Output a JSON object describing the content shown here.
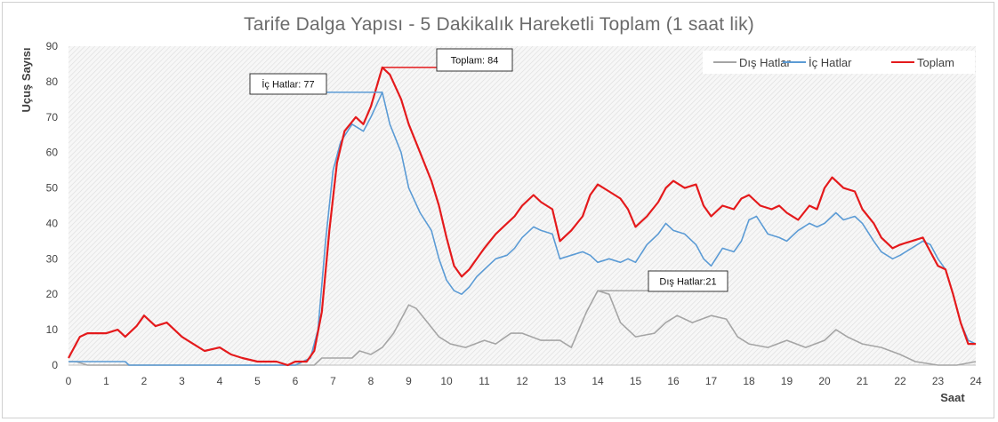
{
  "chart_data": {
    "type": "line",
    "title": "Tarife Dalga Yapısı - 5 Dakikalık Hareketli Toplam (1 saat lik)",
    "xlabel": "Saat",
    "ylabel": "Uçuş Sayısı",
    "xlim": [
      0,
      24
    ],
    "ylim": [
      0,
      90
    ],
    "xticks": [
      0,
      1,
      2,
      3,
      4,
      5,
      6,
      7,
      8,
      9,
      10,
      11,
      12,
      13,
      14,
      15,
      16,
      17,
      18,
      19,
      20,
      21,
      22,
      23,
      24
    ],
    "yticks": [
      0,
      10,
      20,
      30,
      40,
      50,
      60,
      70,
      80,
      90
    ],
    "grid": "hatched-plot-area",
    "legend_position": "top-right",
    "series": [
      {
        "name": "Dış Hatlar",
        "color": "#a5a5a5",
        "points": [
          [
            0,
            1
          ],
          [
            0.2,
            1
          ],
          [
            0.5,
            0
          ],
          [
            1,
            0
          ],
          [
            2,
            0
          ],
          [
            3,
            0
          ],
          [
            4,
            0
          ],
          [
            5,
            0
          ],
          [
            6,
            0
          ],
          [
            6.5,
            0
          ],
          [
            6.7,
            2
          ],
          [
            7,
            2
          ],
          [
            7.5,
            2
          ],
          [
            7.7,
            4
          ],
          [
            8,
            3
          ],
          [
            8.3,
            5
          ],
          [
            8.6,
            9
          ],
          [
            8.8,
            13
          ],
          [
            9,
            17
          ],
          [
            9.2,
            16
          ],
          [
            9.5,
            12
          ],
          [
            9.8,
            8
          ],
          [
            10.1,
            6
          ],
          [
            10.5,
            5
          ],
          [
            11,
            7
          ],
          [
            11.3,
            6
          ],
          [
            11.7,
            9
          ],
          [
            12,
            9
          ],
          [
            12.5,
            7
          ],
          [
            13,
            7
          ],
          [
            13.3,
            5
          ],
          [
            13.7,
            15
          ],
          [
            14,
            21
          ],
          [
            14.3,
            20
          ],
          [
            14.6,
            12
          ],
          [
            15,
            8
          ],
          [
            15.5,
            9
          ],
          [
            15.8,
            12
          ],
          [
            16.1,
            14
          ],
          [
            16.5,
            12
          ],
          [
            17,
            14
          ],
          [
            17.4,
            13
          ],
          [
            17.7,
            8
          ],
          [
            18,
            6
          ],
          [
            18.5,
            5
          ],
          [
            19,
            7
          ],
          [
            19.5,
            5
          ],
          [
            20,
            7
          ],
          [
            20.3,
            10
          ],
          [
            20.6,
            8
          ],
          [
            21,
            6
          ],
          [
            21.5,
            5
          ],
          [
            22,
            3
          ],
          [
            22.4,
            1
          ],
          [
            23,
            0
          ],
          [
            23.5,
            0
          ],
          [
            24,
            1
          ]
        ]
      },
      {
        "name": "İç Hatlar",
        "color": "#5b9bd5",
        "points": [
          [
            0,
            1
          ],
          [
            0.3,
            1
          ],
          [
            1,
            1
          ],
          [
            1.5,
            1
          ],
          [
            1.6,
            0
          ],
          [
            2,
            0
          ],
          [
            3,
            0
          ],
          [
            4,
            0
          ],
          [
            5,
            0
          ],
          [
            6,
            0
          ],
          [
            6.4,
            2
          ],
          [
            6.6,
            10
          ],
          [
            6.8,
            35
          ],
          [
            7,
            55
          ],
          [
            7.2,
            63
          ],
          [
            7.5,
            68
          ],
          [
            7.8,
            66
          ],
          [
            8,
            70
          ],
          [
            8.3,
            77
          ],
          [
            8.5,
            68
          ],
          [
            8.8,
            60
          ],
          [
            9,
            50
          ],
          [
            9.3,
            43
          ],
          [
            9.6,
            38
          ],
          [
            9.8,
            30
          ],
          [
            10,
            24
          ],
          [
            10.2,
            21
          ],
          [
            10.4,
            20
          ],
          [
            10.6,
            22
          ],
          [
            10.8,
            25
          ],
          [
            11,
            27
          ],
          [
            11.3,
            30
          ],
          [
            11.6,
            31
          ],
          [
            11.8,
            33
          ],
          [
            12,
            36
          ],
          [
            12.3,
            39
          ],
          [
            12.5,
            38
          ],
          [
            12.8,
            37
          ],
          [
            13,
            30
          ],
          [
            13.3,
            31
          ],
          [
            13.6,
            32
          ],
          [
            13.8,
            31
          ],
          [
            14,
            29
          ],
          [
            14.3,
            30
          ],
          [
            14.6,
            29
          ],
          [
            14.8,
            30
          ],
          [
            15,
            29
          ],
          [
            15.3,
            34
          ],
          [
            15.6,
            37
          ],
          [
            15.8,
            40
          ],
          [
            16,
            38
          ],
          [
            16.3,
            37
          ],
          [
            16.6,
            34
          ],
          [
            16.8,
            30
          ],
          [
            17,
            28
          ],
          [
            17.3,
            33
          ],
          [
            17.6,
            32
          ],
          [
            17.8,
            35
          ],
          [
            18,
            41
          ],
          [
            18.2,
            42
          ],
          [
            18.5,
            37
          ],
          [
            18.8,
            36
          ],
          [
            19,
            35
          ],
          [
            19.3,
            38
          ],
          [
            19.6,
            40
          ],
          [
            19.8,
            39
          ],
          [
            20,
            40
          ],
          [
            20.3,
            43
          ],
          [
            20.5,
            41
          ],
          [
            20.8,
            42
          ],
          [
            21,
            40
          ],
          [
            21.3,
            35
          ],
          [
            21.5,
            32
          ],
          [
            21.8,
            30
          ],
          [
            22,
            31
          ],
          [
            22.3,
            33
          ],
          [
            22.6,
            35
          ],
          [
            22.8,
            34
          ],
          [
            23,
            30
          ],
          [
            23.2,
            27
          ],
          [
            23.4,
            20
          ],
          [
            23.6,
            12
          ],
          [
            23.8,
            7
          ],
          [
            24,
            6
          ]
        ]
      },
      {
        "name": "Toplam",
        "color": "#e41a1c",
        "points": [
          [
            0,
            2
          ],
          [
            0.3,
            8
          ],
          [
            0.5,
            9
          ],
          [
            1,
            9
          ],
          [
            1.3,
            10
          ],
          [
            1.5,
            8
          ],
          [
            1.8,
            11
          ],
          [
            2,
            14
          ],
          [
            2.3,
            11
          ],
          [
            2.6,
            12
          ],
          [
            2.8,
            10
          ],
          [
            3,
            8
          ],
          [
            3.3,
            6
          ],
          [
            3.6,
            4
          ],
          [
            4,
            5
          ],
          [
            4.3,
            3
          ],
          [
            4.6,
            2
          ],
          [
            5,
            1
          ],
          [
            5.5,
            1
          ],
          [
            5.8,
            0
          ],
          [
            6,
            1
          ],
          [
            6.3,
            1
          ],
          [
            6.5,
            4
          ],
          [
            6.7,
            15
          ],
          [
            6.9,
            38
          ],
          [
            7.1,
            57
          ],
          [
            7.3,
            66
          ],
          [
            7.6,
            70
          ],
          [
            7.8,
            68
          ],
          [
            8,
            73
          ],
          [
            8.3,
            84
          ],
          [
            8.5,
            82
          ],
          [
            8.8,
            75
          ],
          [
            9,
            68
          ],
          [
            9.3,
            60
          ],
          [
            9.6,
            52
          ],
          [
            9.8,
            45
          ],
          [
            10,
            36
          ],
          [
            10.2,
            28
          ],
          [
            10.4,
            25
          ],
          [
            10.6,
            27
          ],
          [
            10.8,
            30
          ],
          [
            11,
            33
          ],
          [
            11.3,
            37
          ],
          [
            11.6,
            40
          ],
          [
            11.8,
            42
          ],
          [
            12,
            45
          ],
          [
            12.3,
            48
          ],
          [
            12.5,
            46
          ],
          [
            12.8,
            44
          ],
          [
            13,
            35
          ],
          [
            13.3,
            38
          ],
          [
            13.6,
            42
          ],
          [
            13.8,
            48
          ],
          [
            14,
            51
          ],
          [
            14.3,
            49
          ],
          [
            14.6,
            47
          ],
          [
            14.8,
            44
          ],
          [
            15,
            39
          ],
          [
            15.3,
            42
          ],
          [
            15.6,
            46
          ],
          [
            15.8,
            50
          ],
          [
            16,
            52
          ],
          [
            16.3,
            50
          ],
          [
            16.6,
            51
          ],
          [
            16.8,
            45
          ],
          [
            17,
            42
          ],
          [
            17.3,
            45
          ],
          [
            17.6,
            44
          ],
          [
            17.8,
            47
          ],
          [
            18,
            48
          ],
          [
            18.3,
            45
          ],
          [
            18.6,
            44
          ],
          [
            18.8,
            45
          ],
          [
            19,
            43
          ],
          [
            19.3,
            41
          ],
          [
            19.6,
            45
          ],
          [
            19.8,
            44
          ],
          [
            20,
            50
          ],
          [
            20.2,
            53
          ],
          [
            20.5,
            50
          ],
          [
            20.8,
            49
          ],
          [
            21,
            44
          ],
          [
            21.3,
            40
          ],
          [
            21.5,
            36
          ],
          [
            21.8,
            33
          ],
          [
            22,
            34
          ],
          [
            22.3,
            35
          ],
          [
            22.6,
            36
          ],
          [
            22.8,
            32
          ],
          [
            23,
            28
          ],
          [
            23.2,
            27
          ],
          [
            23.4,
            20
          ],
          [
            23.6,
            12
          ],
          [
            23.8,
            6
          ],
          [
            24,
            6
          ]
        ]
      }
    ],
    "annotations": [
      {
        "text": "Toplam: 84",
        "x": 8.3,
        "y": 84,
        "series": "Toplam",
        "color": "#e41a1c"
      },
      {
        "text": "İç Hatlar: 77",
        "x": 8.3,
        "y": 77,
        "series": "İç Hatlar",
        "color": "#5b9bd5"
      },
      {
        "text": "Dış Hatlar:21",
        "x": 14,
        "y": 21,
        "series": "Dış Hatlar",
        "color": "#a5a5a5"
      }
    ]
  }
}
